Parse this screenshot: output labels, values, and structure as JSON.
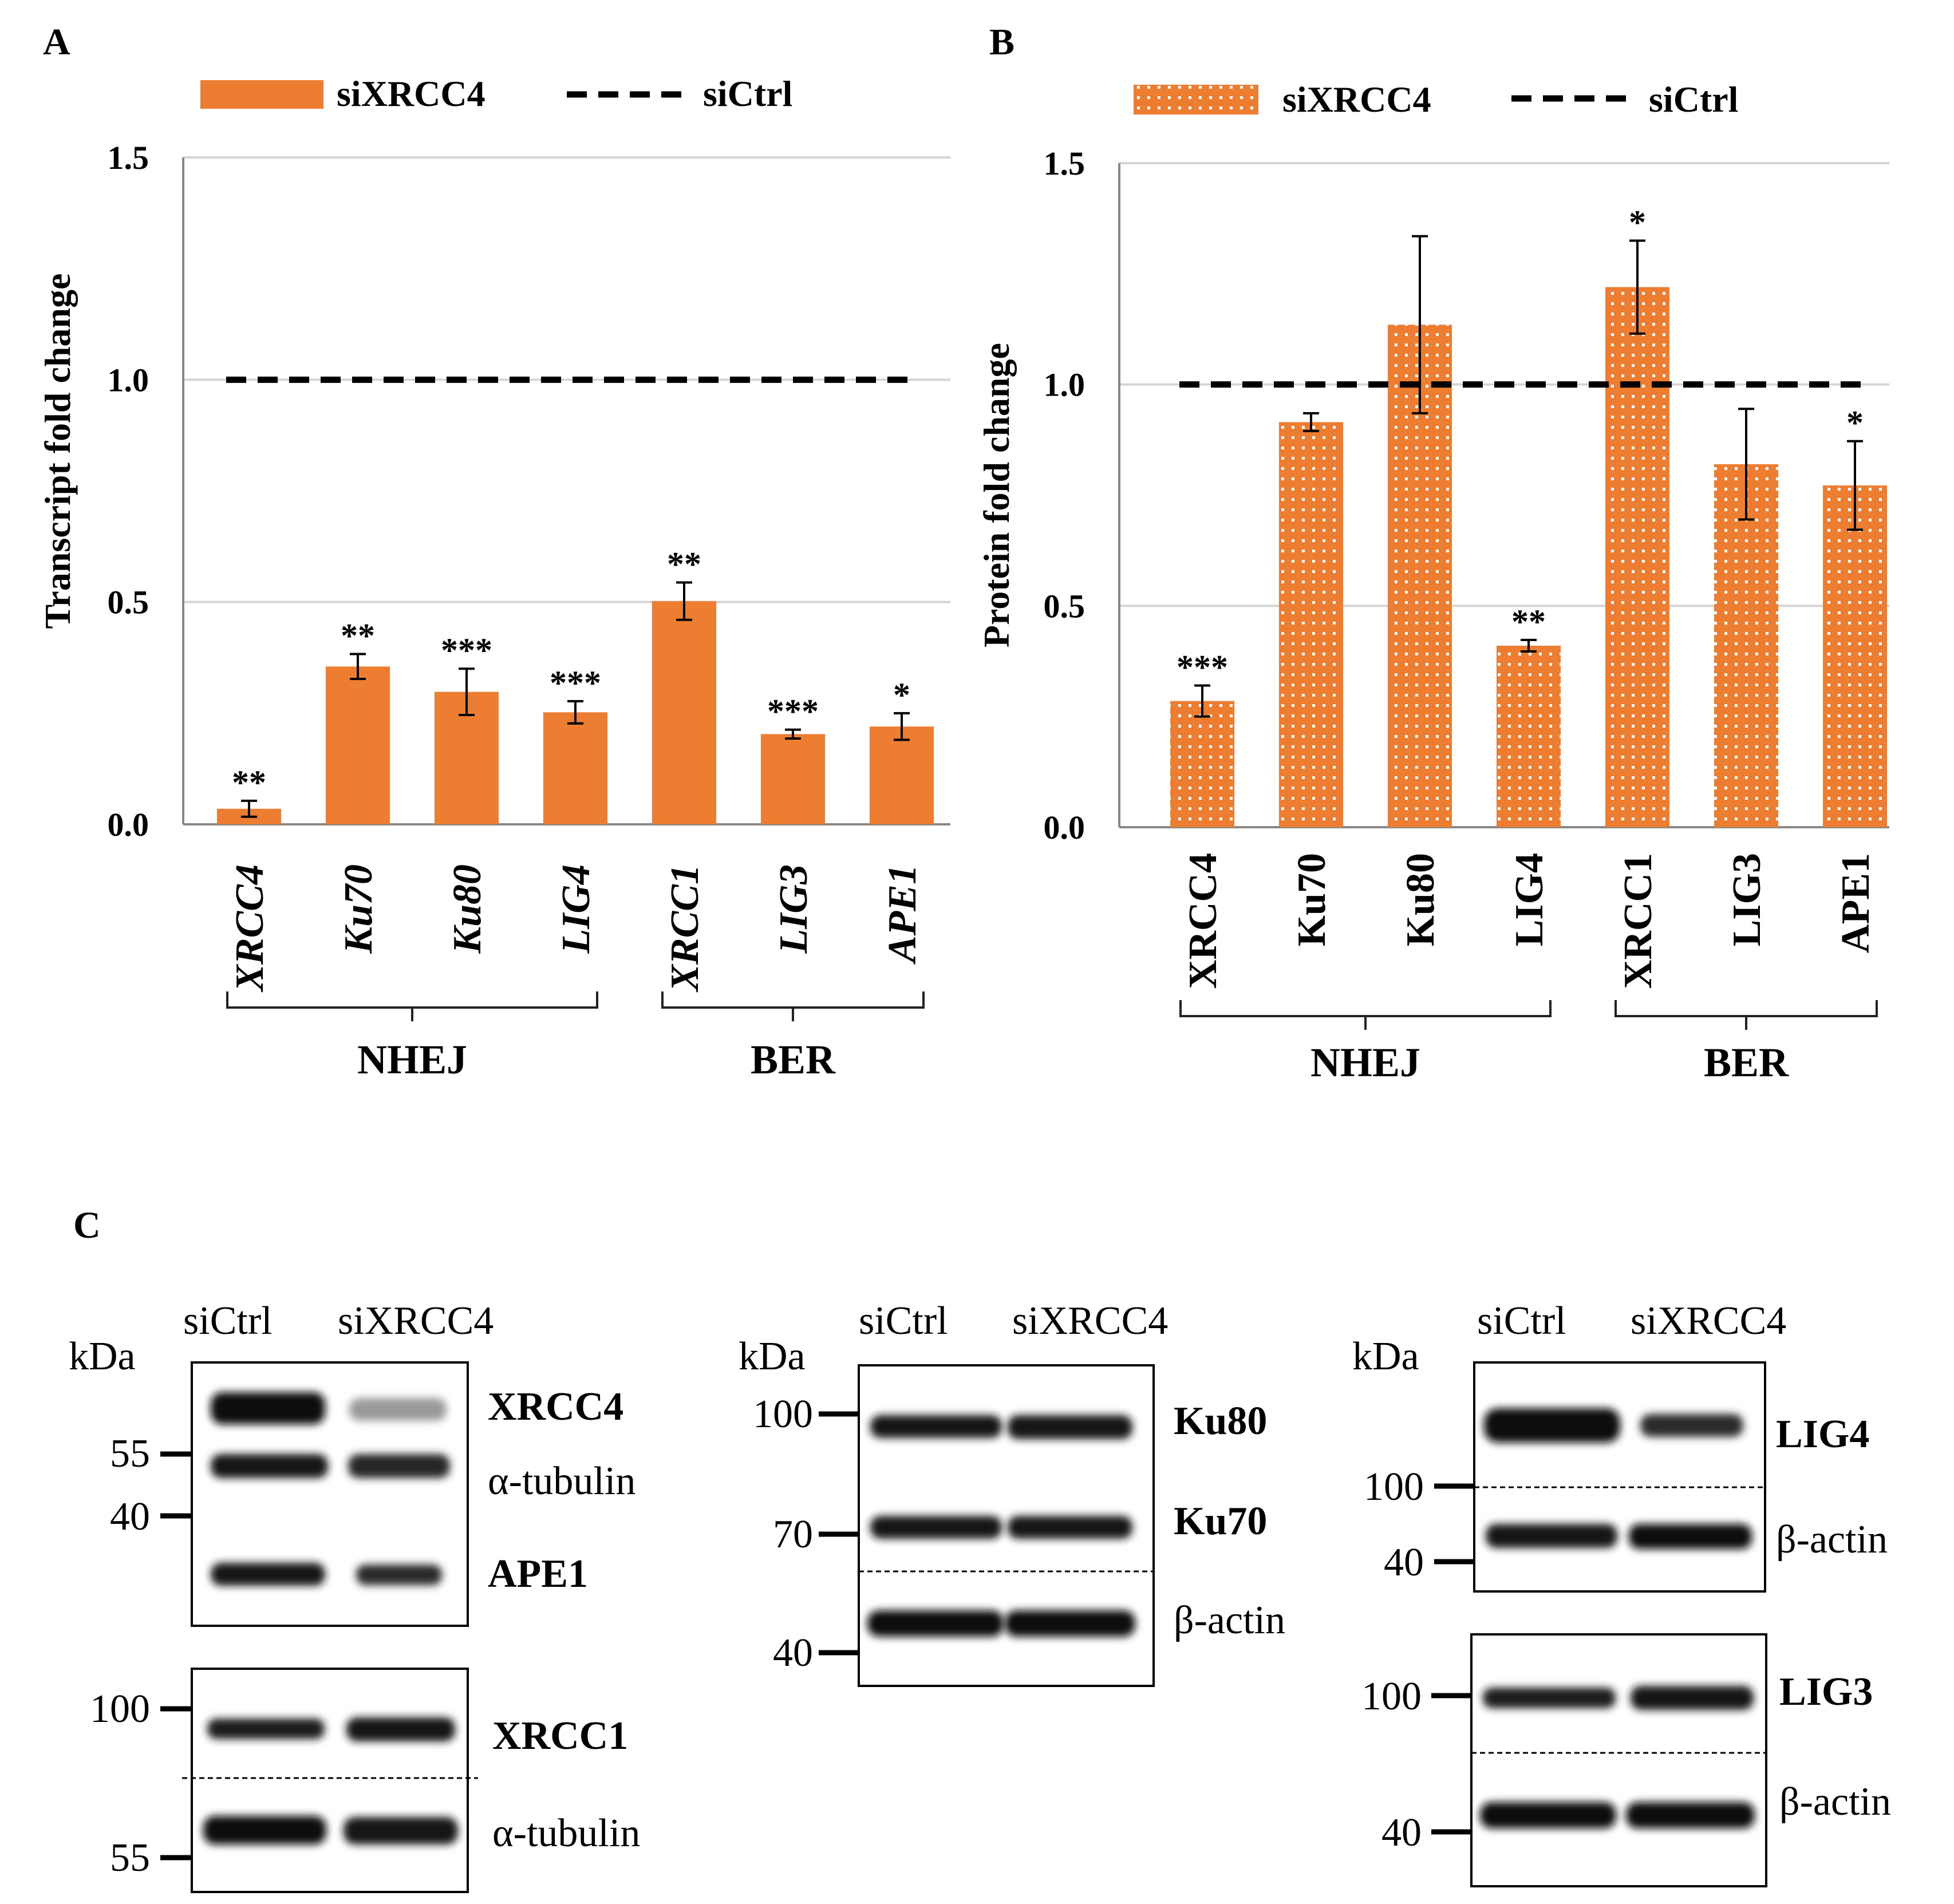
{
  "chart_data": [
    {
      "panel": "A",
      "type": "bar",
      "ylabel": "Transcript fold change",
      "ylim": [
        0,
        1.5
      ],
      "yticks": [
        "0.0",
        "0.5",
        "1.0",
        "1.5"
      ],
      "categories": [
        "XRCC4",
        "Ku70",
        "Ku80",
        "LIG4",
        "XRCC1",
        "LIG3",
        "APE1"
      ],
      "category_style": "italic",
      "series": [
        {
          "name": "siXRCC4",
          "style": "solid",
          "color": "#ED7D31",
          "values": [
            0.035,
            0.355,
            0.298,
            0.252,
            0.502,
            0.203,
            0.22
          ],
          "errors": [
            0.018,
            0.028,
            0.052,
            0.025,
            0.042,
            0.01,
            0.03
          ],
          "significance": [
            "**",
            "**",
            "***",
            "***",
            "**",
            "***",
            "*"
          ]
        }
      ],
      "reference": {
        "name": "siCtrl",
        "value": 1.0,
        "style": "dashed"
      },
      "groups": [
        {
          "label": "NHEJ",
          "from": 0,
          "to": 3
        },
        {
          "label": "BER",
          "from": 4,
          "to": 6
        }
      ],
      "grid": true,
      "legend_position": "top"
    },
    {
      "panel": "B",
      "type": "bar",
      "ylabel": "Protein fold change",
      "ylim": [
        0,
        1.5
      ],
      "yticks": [
        "0.0",
        "0.5",
        "1.0",
        "1.5"
      ],
      "categories": [
        "XRCC4",
        "Ku70",
        "Ku80",
        "LIG4",
        "XRCC1",
        "LIG3",
        "APE1"
      ],
      "category_style": "normal",
      "series": [
        {
          "name": "siXRCC4",
          "style": "dotted",
          "color": "#ED7D31",
          "values": [
            0.285,
            0.915,
            1.135,
            0.41,
            1.22,
            0.82,
            0.772
          ],
          "errors": [
            0.035,
            0.02,
            0.2,
            0.013,
            0.105,
            0.125,
            0.1
          ],
          "significance": [
            "***",
            "",
            "",
            "**",
            "*",
            "",
            "*"
          ]
        }
      ],
      "reference": {
        "name": "siCtrl",
        "value": 1.0,
        "style": "dashed"
      },
      "groups": [
        {
          "label": "NHEJ",
          "from": 0,
          "to": 3
        },
        {
          "label": "BER",
          "from": 4,
          "to": 6
        }
      ],
      "grid": true,
      "legend_position": "top"
    }
  ],
  "panel_labels": {
    "a": "A",
    "b": "B",
    "c": "C"
  },
  "legend": {
    "treated": "siXRCC4",
    "control": "siCtrl"
  },
  "blots": {
    "kda": "kDa",
    "lanes": [
      "siCtrl",
      "siXRCC4"
    ],
    "b1": {
      "m1": "55",
      "m2": "40",
      "p1": "XRCC4",
      "p2": "α-tubulin",
      "p3": "APE1"
    },
    "b2": {
      "m1": "100",
      "m2": "55",
      "p1": "XRCC1",
      "p2": "α-tubulin"
    },
    "b3": {
      "m1": "100",
      "m2": "70",
      "m3": "40",
      "p1": "Ku80",
      "p2": "Ku70",
      "p3": "β-actin"
    },
    "b4": {
      "m1": "100",
      "m2": "40",
      "p1": "LIG4",
      "p2": "β-actin"
    },
    "b5": {
      "m1": "100",
      "m2": "40",
      "p1": "LIG3",
      "p2": "β-actin"
    }
  }
}
